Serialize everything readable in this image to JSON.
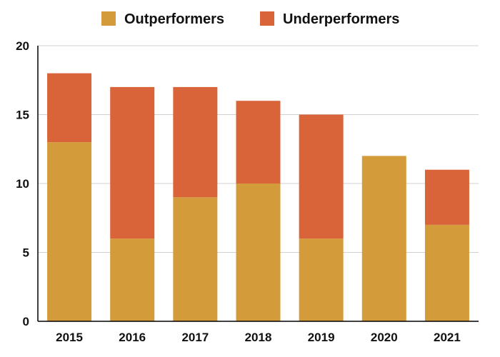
{
  "chart_data": {
    "type": "bar",
    "stacked": true,
    "title": "",
    "xlabel": "",
    "ylabel": "",
    "categories": [
      "2015",
      "2016",
      "2017",
      "2018",
      "2019",
      "2020",
      "2021"
    ],
    "series": [
      {
        "name": "Outperformers",
        "color": "#d49b3a",
        "values": [
          13,
          6,
          9,
          10,
          6,
          12,
          7
        ]
      },
      {
        "name": "Underperformers",
        "color": "#d9643a",
        "values": [
          5,
          11,
          8,
          6,
          9,
          0,
          4
        ]
      }
    ],
    "ylim": [
      0,
      20
    ],
    "yticks": [
      0,
      5,
      10,
      15,
      20
    ],
    "grid": true,
    "legend": "top-center"
  }
}
